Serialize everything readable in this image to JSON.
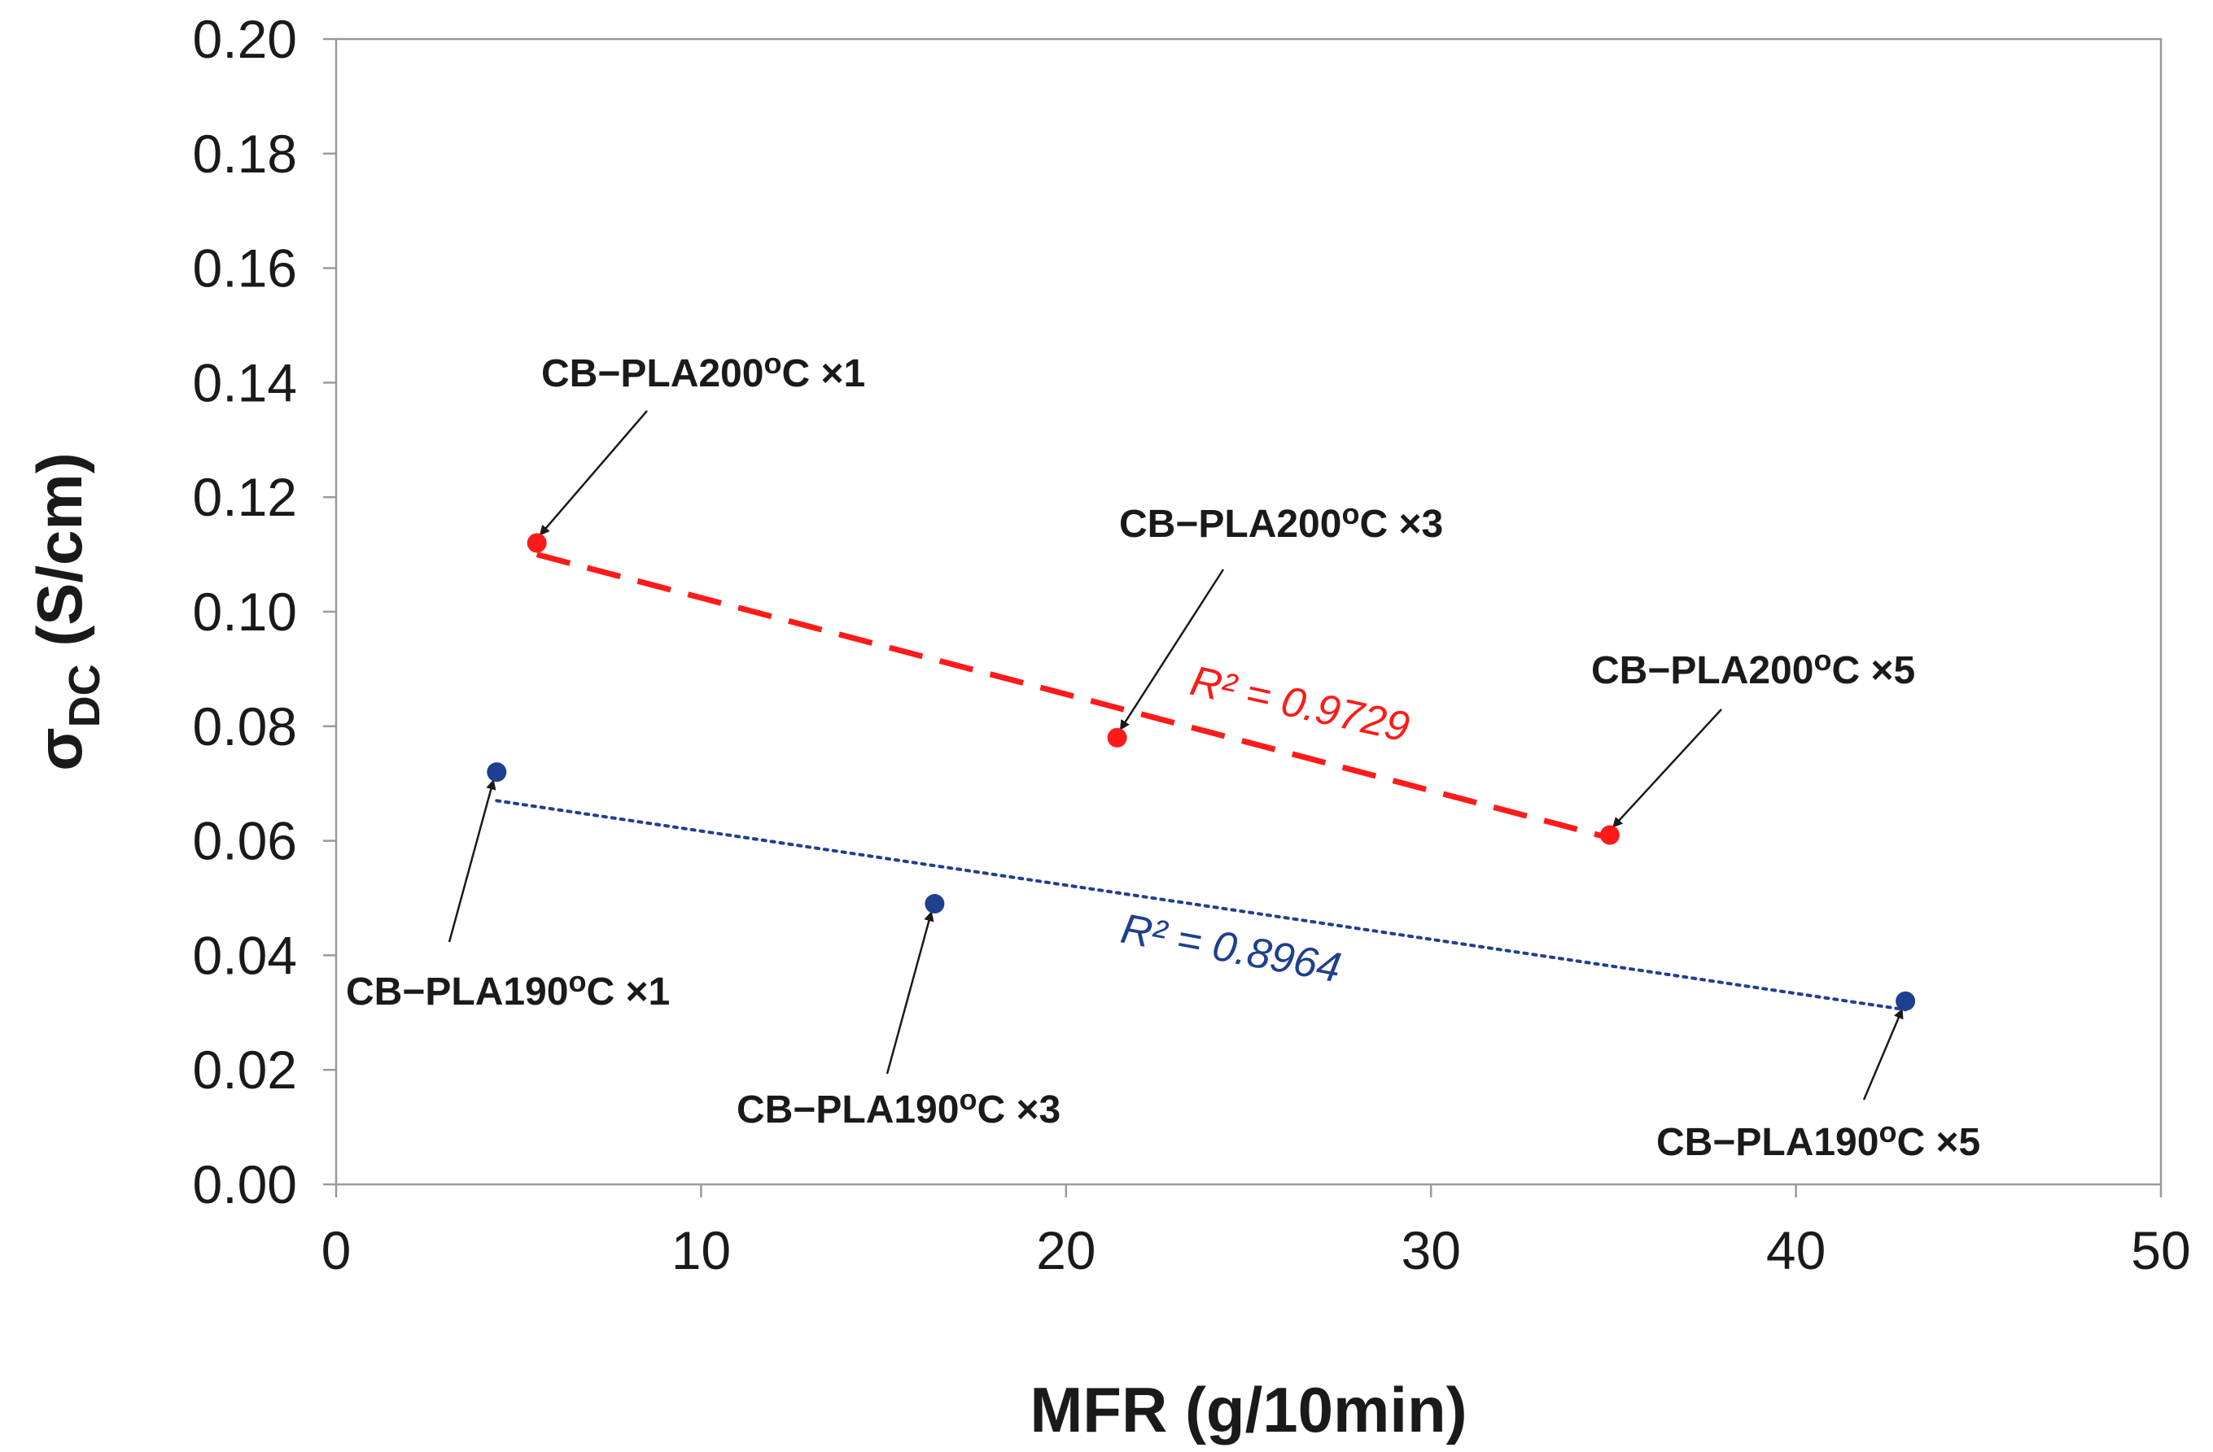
{
  "chart_data": {
    "type": "scatter",
    "xlabel": "MFR (g/10min)",
    "ylabel": {
      "main": "σ",
      "sub": "DC",
      "rest": " (S/cm)"
    },
    "xlim": [
      0,
      50
    ],
    "ylim": [
      0,
      0.2
    ],
    "x_ticks": [
      0,
      10,
      20,
      30,
      40,
      50
    ],
    "x_tick_labels": [
      "0",
      "10",
      "20",
      "30",
      "40",
      "50"
    ],
    "y_ticks": [
      0.0,
      0.02,
      0.04,
      0.06,
      0.08,
      0.1,
      0.12,
      0.14,
      0.16,
      0.18,
      0.2
    ],
    "y_tick_labels": [
      "0.00",
      "0.02",
      "0.04",
      "0.06",
      "0.08",
      "0.10",
      "0.12",
      "0.14",
      "0.16",
      "0.18",
      "0.20"
    ],
    "grid": false,
    "series": [
      {
        "name": "CB-PLA 200°C",
        "color": "#ff1a1a",
        "points": [
          {
            "x": 5.5,
            "y": 0.112,
            "label": "CB−PLA200",
            "label_sup": "o",
            "label_suffix": "C ×1"
          },
          {
            "x": 21.4,
            "y": 0.078,
            "label": "CB−PLA200",
            "label_sup": "o",
            "label_suffix": "C ×3"
          },
          {
            "x": 34.9,
            "y": 0.061,
            "label": "CB−PLA200",
            "label_sup": "o",
            "label_suffix": "C ×5"
          }
        ],
        "trendline": {
          "style": "dashed",
          "x": [
            5.5,
            34.9
          ],
          "y": [
            0.11,
            0.0605
          ],
          "r2_label": "R² = 0.9729"
        }
      },
      {
        "name": "CB-PLA 190°C",
        "color": "#1f3f8f",
        "points": [
          {
            "x": 4.4,
            "y": 0.072,
            "label": "CB−PLA190",
            "label_sup": "o",
            "label_suffix": "C ×1"
          },
          {
            "x": 16.4,
            "y": 0.049,
            "label": "CB−PLA190",
            "label_sup": "o",
            "label_suffix": "C ×3"
          },
          {
            "x": 43.0,
            "y": 0.032,
            "label": "CB−PLA190",
            "label_sup": "o",
            "label_suffix": "C ×5"
          }
        ],
        "trendline": {
          "style": "dotted",
          "x": [
            4.4,
            43.0
          ],
          "y": [
            0.067,
            0.0305
          ],
          "r2_label": "R² = 0.8964"
        }
      }
    ]
  }
}
